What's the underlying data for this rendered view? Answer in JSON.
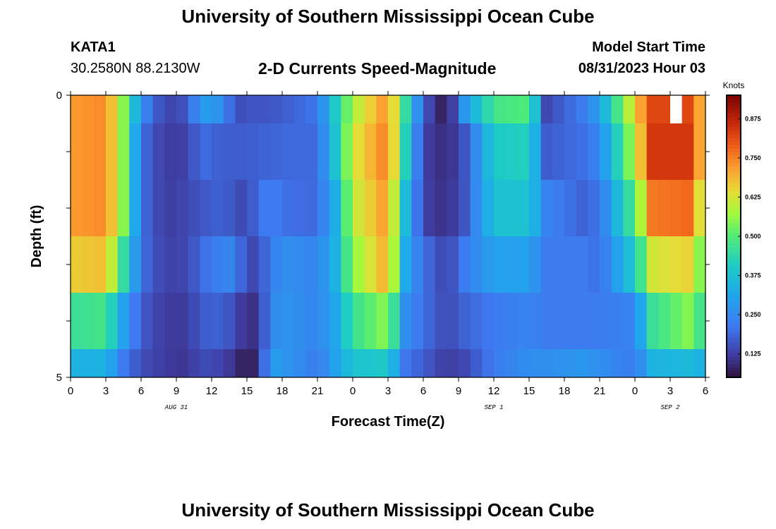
{
  "header": {
    "title": "University of Southern Mississippi Ocean Cube",
    "station": "KATA1",
    "coordinates": "30.2580N  88.2130W",
    "subtitle": "2-D Currents Speed-Magnitude",
    "model_start_label": "Model Start Time",
    "model_start_value": "08/31/2023 Hour 03"
  },
  "footer": {
    "title": "University of Southern Mississippi Ocean Cube"
  },
  "chart_data": {
    "type": "heatmap",
    "title": "2-D Currents Speed-Magnitude",
    "xlabel": "Forecast Time(Z)",
    "ylabel": "Depth (ft)",
    "colorbar_label": "Knots",
    "x_tick_labels": [
      "0",
      "3",
      "6",
      "9",
      "12",
      "15",
      "18",
      "21",
      "0",
      "3",
      "6",
      "9",
      "12",
      "15",
      "18",
      "21",
      "0",
      "3",
      "6"
    ],
    "date_labels": [
      {
        "text": "AUG 31",
        "at_tick": 3
      },
      {
        "text": "SEP 1",
        "at_tick": 12
      },
      {
        "text": "SEP 2",
        "at_tick": 17
      }
    ],
    "y_range": [
      0,
      5
    ],
    "y_tick_labels": [
      "0",
      "5"
    ],
    "value_range": [
      0.05,
      0.95
    ],
    "colorbar_ticks": [
      0.125,
      0.25,
      0.375,
      0.5,
      0.625,
      0.75,
      0.875
    ],
    "colorbar_tick_labels": [
      "0.125",
      "0.250",
      "0.375",
      "0.500",
      "0.625",
      "0.750",
      "0.875"
    ],
    "time_hours": [
      0,
      54
    ],
    "time_step_hours": 1,
    "depth_band_edges_ft": [
      0,
      0.5,
      1.5,
      2.5,
      3.5,
      4.5,
      5
    ],
    "speed_keyframes_knots": [
      {
        "hour": 0,
        "speeds": [
          0.72,
          0.72,
          0.72,
          0.66,
          0.46,
          0.34
        ]
      },
      {
        "hour": 3,
        "speeds": [
          0.74,
          0.74,
          0.74,
          0.68,
          0.48,
          0.34
        ]
      },
      {
        "hour": 4.5,
        "speeds": [
          0.55,
          0.55,
          0.55,
          0.45,
          0.3,
          0.22
        ]
      },
      {
        "hour": 6,
        "speeds": [
          0.26,
          0.2,
          0.2,
          0.2,
          0.17,
          0.15
        ]
      },
      {
        "hour": 8,
        "speeds": [
          0.13,
          0.12,
          0.12,
          0.13,
          0.12,
          0.12
        ]
      },
      {
        "hour": 10,
        "speeds": [
          0.16,
          0.13,
          0.14,
          0.14,
          0.12,
          0.11
        ]
      },
      {
        "hour": 11,
        "speeds": [
          0.3,
          0.2,
          0.16,
          0.19,
          0.17,
          0.15
        ]
      },
      {
        "hour": 13,
        "speeds": [
          0.26,
          0.17,
          0.18,
          0.24,
          0.18,
          0.13
        ]
      },
      {
        "hour": 14,
        "speeds": [
          0.14,
          0.17,
          0.15,
          0.24,
          0.14,
          0.1
        ]
      },
      {
        "hour": 15,
        "speeds": [
          0.16,
          0.17,
          0.14,
          0.13,
          0.1,
          0.06
        ]
      },
      {
        "hour": 16,
        "speeds": [
          0.16,
          0.18,
          0.2,
          0.15,
          0.11,
          0.1
        ]
      },
      {
        "hour": 17,
        "speeds": [
          0.16,
          0.18,
          0.23,
          0.22,
          0.24,
          0.3
        ]
      },
      {
        "hour": 18,
        "speeds": [
          0.17,
          0.19,
          0.2,
          0.26,
          0.27,
          0.28
        ]
      },
      {
        "hour": 21,
        "speeds": [
          0.21,
          0.19,
          0.19,
          0.24,
          0.24,
          0.22
        ]
      },
      {
        "hour": 22.5,
        "speeds": [
          0.4,
          0.38,
          0.33,
          0.34,
          0.31,
          0.3
        ]
      },
      {
        "hour": 24,
        "speeds": [
          0.58,
          0.62,
          0.6,
          0.55,
          0.46,
          0.38
        ]
      },
      {
        "hour": 27,
        "speeds": [
          0.74,
          0.76,
          0.73,
          0.71,
          0.56,
          0.4
        ]
      },
      {
        "hour": 28.5,
        "speeds": [
          0.45,
          0.42,
          0.36,
          0.32,
          0.26,
          0.21
        ]
      },
      {
        "hour": 30,
        "speeds": [
          0.17,
          0.13,
          0.13,
          0.2,
          0.2,
          0.17
        ]
      },
      {
        "hour": 32,
        "speeds": [
          0.05,
          0.09,
          0.1,
          0.13,
          0.14,
          0.12
        ]
      },
      {
        "hour": 33.5,
        "speeds": [
          0.28,
          0.16,
          0.16,
          0.22,
          0.18,
          0.14
        ]
      },
      {
        "hour": 36,
        "speeds": [
          0.48,
          0.4,
          0.38,
          0.3,
          0.22,
          0.22
        ]
      },
      {
        "hour": 39,
        "speeds": [
          0.5,
          0.42,
          0.38,
          0.3,
          0.24,
          0.26
        ]
      },
      {
        "hour": 40.5,
        "speeds": [
          0.14,
          0.17,
          0.24,
          0.22,
          0.22,
          0.26
        ]
      },
      {
        "hour": 43.5,
        "speeds": [
          0.22,
          0.2,
          0.18,
          0.22,
          0.22,
          0.28
        ]
      },
      {
        "hour": 45,
        "speeds": [
          0.3,
          0.24,
          0.21,
          0.2,
          0.22,
          0.26
        ]
      },
      {
        "hour": 48,
        "speeds": [
          0.66,
          0.6,
          0.5,
          0.4,
          0.24,
          0.22
        ]
      },
      {
        "hour": 49.5,
        "speeds": [
          0.82,
          0.84,
          0.76,
          0.62,
          0.46,
          0.34
        ]
      },
      {
        "hour": 53,
        "speeds": [
          0.82,
          0.84,
          0.78,
          0.66,
          0.56,
          0.36
        ]
      },
      {
        "hour": 54,
        "speeds": [
          0.6,
          0.58,
          0.5,
          0.44,
          0.4,
          0.32
        ]
      }
    ],
    "no_data_cell": {
      "hour": 51.5,
      "band": 0
    }
  }
}
